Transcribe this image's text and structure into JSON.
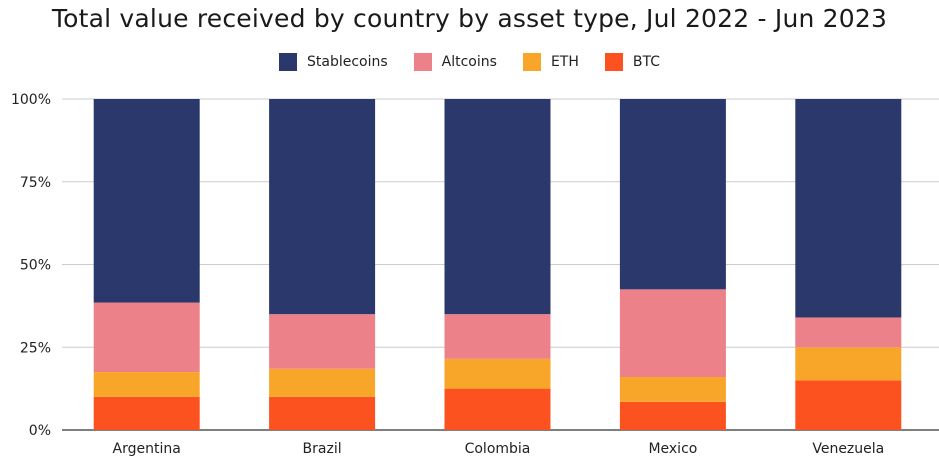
{
  "chart_data": {
    "type": "bar",
    "stacked": true,
    "title": "Total value received by country by asset type, Jul 2022 - Jun 2023",
    "xlabel": "",
    "ylabel": "",
    "categories": [
      "Argentina",
      "Brazil",
      "Colombia",
      "Mexico",
      "Venezuela"
    ],
    "series": [
      {
        "name": "BTC",
        "color": "#fc5220",
        "values": [
          10,
          10,
          12.5,
          8.5,
          15
        ]
      },
      {
        "name": "ETH",
        "color": "#f8a629",
        "values": [
          7.5,
          8.5,
          9,
          7.5,
          10
        ]
      },
      {
        "name": "Altcoins",
        "color": "#ec8189",
        "values": [
          21,
          16.5,
          13.5,
          26.5,
          9
        ]
      },
      {
        "name": "Stablecoins",
        "color": "#2a386b",
        "values": [
          61.5,
          65,
          65,
          57.5,
          66
        ]
      }
    ],
    "legend_order": [
      "Stablecoins",
      "Altcoins",
      "ETH",
      "BTC"
    ],
    "legend_position": "top-center",
    "ylim": [
      0,
      100
    ],
    "yticks": [
      "0%",
      "25%",
      "50%",
      "75%",
      "100%"
    ],
    "ytick_values": [
      0,
      25,
      50,
      75,
      100
    ],
    "grid": true
  }
}
